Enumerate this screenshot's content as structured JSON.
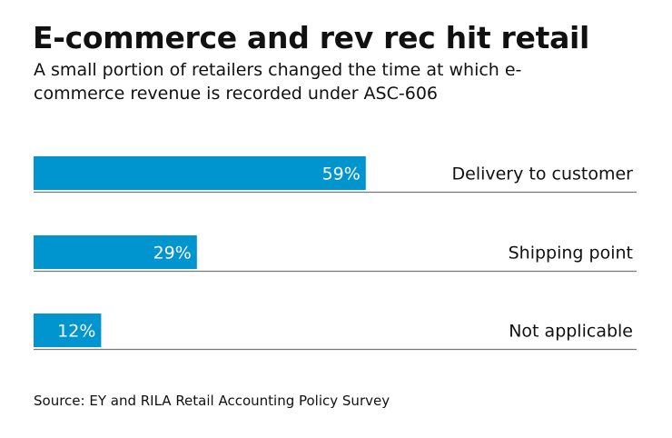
{
  "chart_data": {
    "type": "bar",
    "orientation": "horizontal",
    "title": "E-commerce and rev rec hit retail",
    "subtitle": "A small portion of retailers changed the time at which e-commerce revenue is recorded under ASC-606",
    "categories": [
      "Delivery to customer",
      "Shipping point",
      "Not applicable"
    ],
    "values": [
      59,
      29,
      12
    ],
    "value_labels": [
      "59%",
      "29%",
      "12%"
    ],
    "xlim": [
      0,
      100
    ],
    "grid": false,
    "source": "Source: EY and RILA Retail Accounting Policy Survey",
    "colors": {
      "bar": "#0095cf",
      "baseline": "#777777",
      "label_on_bar": "#ffffff"
    }
  }
}
